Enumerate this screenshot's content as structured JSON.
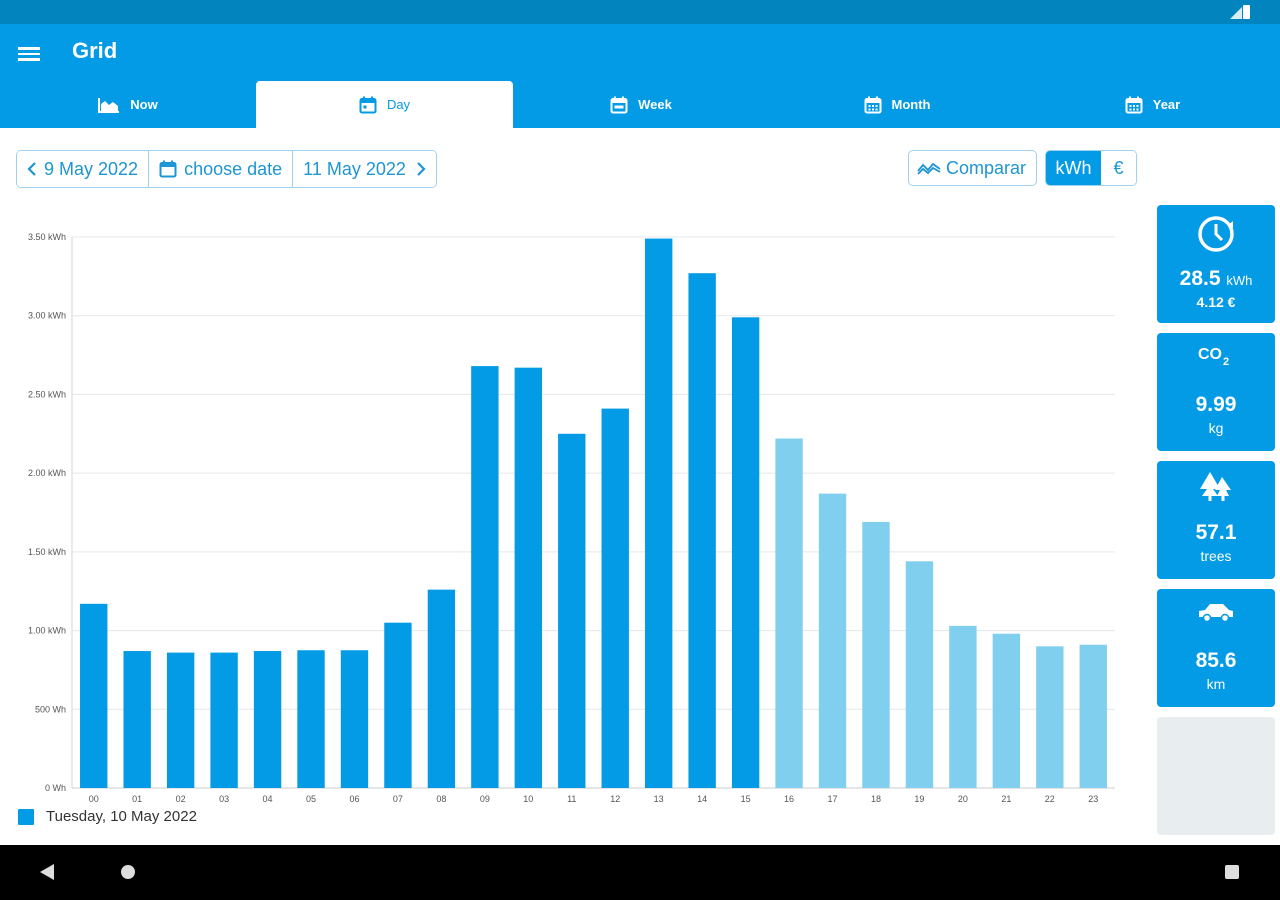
{
  "app": {
    "title": "Grid"
  },
  "tabs": [
    {
      "label": "Now",
      "icon": "area-chart-icon",
      "active": false
    },
    {
      "label": "Day",
      "icon": "calendar-icon",
      "active": true
    },
    {
      "label": "Week",
      "icon": "calendar-icon",
      "active": false
    },
    {
      "label": "Month",
      "icon": "calendar-icon",
      "active": false
    },
    {
      "label": "Year",
      "icon": "calendar-icon",
      "active": false
    }
  ],
  "date_nav": {
    "prev_label": "9 May 2022",
    "choose_label": "choose date",
    "next_label": "11 May 2022"
  },
  "toolbar": {
    "compare_label": "Comparar",
    "unit_kwh": "kWh",
    "unit_eur": "€"
  },
  "colors": {
    "primary": "#039be5",
    "bar_past": "#039be5",
    "bar_future": "#81cfee"
  },
  "chart_data": {
    "type": "bar",
    "categories": [
      "00",
      "01",
      "02",
      "03",
      "04",
      "05",
      "06",
      "07",
      "08",
      "09",
      "10",
      "11",
      "12",
      "13",
      "14",
      "15",
      "16",
      "17",
      "18",
      "19",
      "20",
      "21",
      "22",
      "23"
    ],
    "values": [
      1.17,
      0.87,
      0.86,
      0.86,
      0.87,
      0.875,
      0.875,
      1.05,
      1.26,
      2.68,
      2.67,
      2.25,
      2.41,
      3.49,
      3.27,
      2.99,
      2.22,
      1.87,
      1.69,
      1.44,
      1.03,
      0.98,
      0.9,
      0.91
    ],
    "highlighted_from_index": 16,
    "yticks": [
      {
        "value": 0,
        "label": "0 Wh"
      },
      {
        "value": 0.5,
        "label": "500 Wh"
      },
      {
        "value": 1.0,
        "label": "1.00 kWh"
      },
      {
        "value": 1.5,
        "label": "1.50 kWh"
      },
      {
        "value": 2.0,
        "label": "2.00 kWh"
      },
      {
        "value": 2.5,
        "label": "2.50 kWh"
      },
      {
        "value": 3.0,
        "label": "3.00 kWh"
      },
      {
        "value": 3.5,
        "label": "3.50 kWh"
      }
    ],
    "ylim": [
      0,
      3.5
    ],
    "grid": true,
    "legend": {
      "label": "Tuesday, 10 May 2022",
      "placement": "bottom-left"
    }
  },
  "cards": [
    {
      "icon": "clock-icon",
      "value": "28.5",
      "unit": "kWh",
      "sub": "4.12 €"
    },
    {
      "icon": "co2-icon",
      "value": "9.99",
      "sub": "kg"
    },
    {
      "icon": "trees-icon",
      "value": "57.1",
      "sub": "trees"
    },
    {
      "icon": "car-icon",
      "value": "85.6",
      "sub": "km"
    }
  ]
}
